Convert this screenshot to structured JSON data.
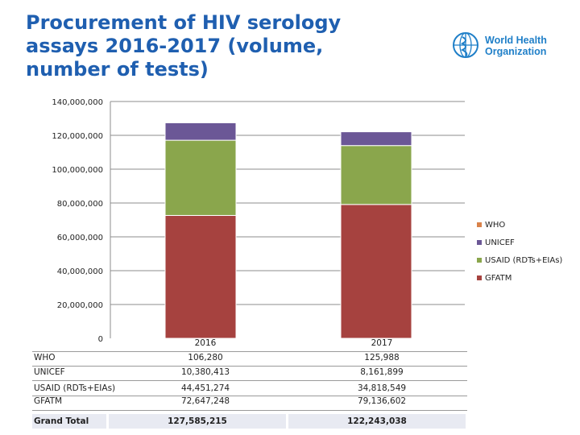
{
  "title": "Procurement of HIV serology\nassays 2016-2017 (volume,\nnumber of tests)",
  "logo": {
    "text_line1": "World Health",
    "text_line2": "Organization"
  },
  "chart_data": {
    "type": "bar",
    "stacked": true,
    "categories": [
      "2016",
      "2017"
    ],
    "series": [
      {
        "name": "GFATM",
        "values": [
          72647248,
          79136602
        ],
        "color": "#a6423f"
      },
      {
        "name": "USAID (RDTs+EIAs)",
        "values": [
          44451274,
          34818549
        ],
        "color": "#8aa64c"
      },
      {
        "name": "UNICEF",
        "values": [
          10380413,
          8161899
        ],
        "color": "#6b5796"
      },
      {
        "name": "WHO",
        "values": [
          106280,
          125988
        ],
        "color": "#d9824a"
      }
    ],
    "ylim": [
      0,
      140000000
    ],
    "yticks": [
      "140,000,000",
      "120,000,000",
      "100,000,000",
      "80,000,000",
      "60,000,000",
      "40,000,000",
      "20,000,000",
      "0"
    ],
    "ytick_values": [
      140000000,
      120000000,
      100000000,
      80000000,
      60000000,
      40000000,
      20000000,
      0
    ],
    "legend": [
      "WHO",
      "UNICEF",
      "USAID (RDTs+EIAs)",
      "GFATM"
    ],
    "legend_position": "right"
  },
  "table": {
    "header": [
      "2016",
      "2017"
    ],
    "rows": [
      {
        "label": "WHO",
        "values": [
          "106,280",
          "125,988"
        ]
      },
      {
        "label": "UNICEF",
        "values": [
          "10,380,413",
          "8,161,899"
        ]
      },
      {
        "label": "USAID (RDTs+EIAs)",
        "values": [
          "44,451,274",
          "34,818,549"
        ]
      },
      {
        "label": "GFATM",
        "values": [
          "72,647,248",
          "79,136,602"
        ]
      }
    ],
    "grand_total": {
      "label": "Grand Total",
      "values": [
        "127,585,215",
        "122,243,038"
      ]
    }
  },
  "colors": {
    "title": "#1f5fb0",
    "who_blue": "#1f7fc8"
  }
}
